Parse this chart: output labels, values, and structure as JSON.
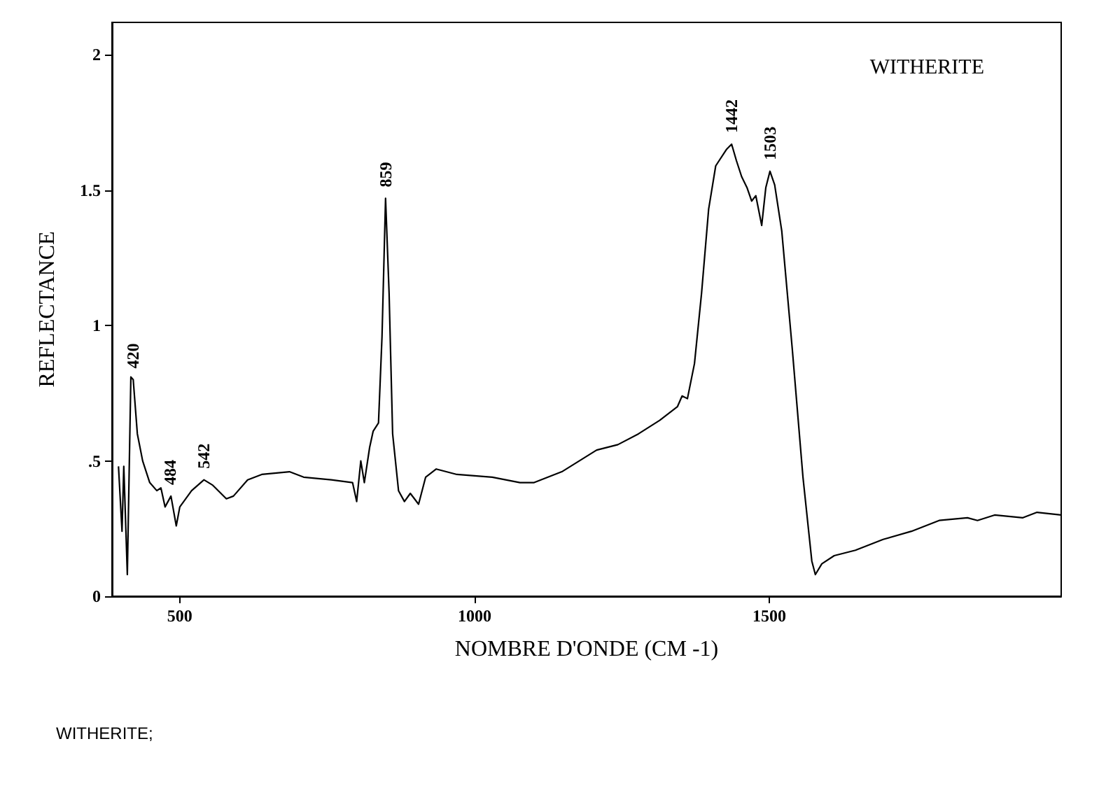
{
  "chart_data": {
    "type": "line",
    "title": "WITHERITE",
    "xlabel": "NOMBRE D'ONDE (CM -1)",
    "ylabel": "REFLECTANCE",
    "xlim": [
      385,
      1995
    ],
    "ylim": [
      0,
      2.12
    ],
    "xticks": [
      500,
      1000,
      1500
    ],
    "yticks": [
      0,
      {
        "value": 0.5,
        "label": ".5"
      },
      1,
      1.5,
      2
    ],
    "marker": "none",
    "line_style": "solid",
    "series": [
      {
        "color": "#000000",
        "x": [
          396,
          402,
          405,
          411,
          417,
          421,
          428,
          437,
          449,
          461,
          468,
          475,
          485,
          494,
          500,
          520,
          541,
          556,
          579,
          591,
          615,
          639,
          686,
          710,
          757,
          793,
          800,
          807,
          813,
          822,
          828,
          837,
          843,
          849,
          855,
          861,
          871,
          881,
          891,
          905,
          917,
          935,
          970,
          1030,
          1077,
          1101,
          1148,
          1207,
          1243,
          1278,
          1314,
          1344,
          1352,
          1361,
          1373,
          1385,
          1397,
          1409,
          1427,
          1436,
          1444,
          1453,
          1462,
          1470,
          1477,
          1487,
          1494,
          1501,
          1509,
          1521,
          1539,
          1557,
          1572,
          1578,
          1589,
          1610,
          1646,
          1693,
          1741,
          1788,
          1836,
          1853,
          1882,
          1930,
          1954,
          1995
        ],
        "values": [
          0.48,
          0.24,
          0.48,
          0.08,
          0.81,
          0.8,
          0.6,
          0.5,
          0.42,
          0.39,
          0.4,
          0.33,
          0.37,
          0.26,
          0.33,
          0.39,
          0.43,
          0.41,
          0.36,
          0.37,
          0.43,
          0.45,
          0.46,
          0.44,
          0.43,
          0.42,
          0.35,
          0.5,
          0.42,
          0.55,
          0.61,
          0.64,
          0.96,
          1.47,
          1.12,
          0.6,
          0.39,
          0.35,
          0.38,
          0.34,
          0.44,
          0.47,
          0.45,
          0.44,
          0.42,
          0.42,
          0.46,
          0.54,
          0.56,
          0.6,
          0.65,
          0.7,
          0.74,
          0.73,
          0.86,
          1.12,
          1.43,
          1.59,
          1.65,
          1.67,
          1.61,
          1.55,
          1.51,
          1.46,
          1.48,
          1.37,
          1.51,
          1.57,
          1.52,
          1.35,
          0.91,
          0.44,
          0.13,
          0.08,
          0.12,
          0.15,
          0.17,
          0.21,
          0.24,
          0.28,
          0.29,
          0.28,
          0.3,
          0.29,
          0.31,
          0.3
        ]
      }
    ],
    "annotations": [
      {
        "text": "420",
        "x": 421,
        "y": 0.8
      },
      {
        "text": "484",
        "x": 484,
        "y": 0.37
      },
      {
        "text": "542",
        "x": 541,
        "y": 0.43
      },
      {
        "text": "859",
        "x": 849,
        "y": 1.47
      },
      {
        "text": "1442",
        "x": 1436,
        "y": 1.67
      },
      {
        "text": "1503",
        "x": 1501,
        "y": 1.57
      },
      "WITHERITE;"
    ]
  }
}
